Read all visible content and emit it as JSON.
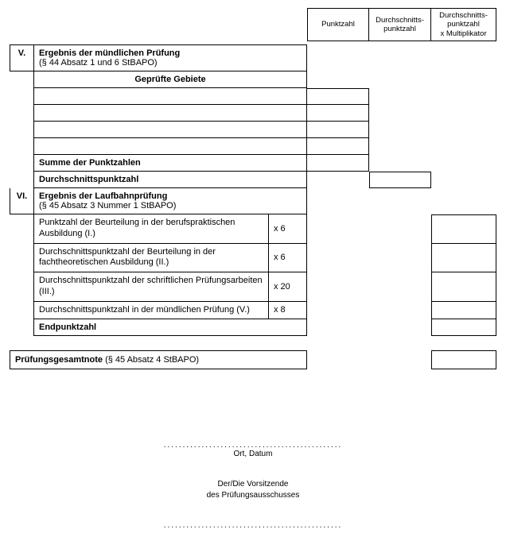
{
  "header": {
    "col1": "Punktzahl",
    "col2": "Durchschnitts-\npunktzahl",
    "col3": "Durchschnitts-\npunktzahl\nx Multiplikator"
  },
  "section_v": {
    "roman": "V.",
    "title": "Ergebnis der mündlichen Prüfung",
    "subtitle": "(§ 44 Absatz 1 und 6 StBAPO)",
    "areas_header": "Geprüfte Gebiete",
    "sum_label": "Summe der Punktzahlen",
    "dsp_label": "Durchschnittspunktzahl"
  },
  "section_vi": {
    "roman": "VI.",
    "title": "Ergebnis der Laufbahnprüfung",
    "subtitle": "(§ 45 Absatz 3 Nummer 1 StBAPO)",
    "rows": [
      {
        "label": "Punktzahl der Beurteilung in der berufspraktischen Ausbildung (I.)",
        "mult": "x 6"
      },
      {
        "label": "Durchschnittspunktzahl der Beurteilung in der fachtheoretischen Ausbildung (II.)",
        "mult": "x 6"
      },
      {
        "label": "Durchschnittspunktzahl der schriftlichen Prüfungsarbeiten (III.)",
        "mult": "x 20"
      },
      {
        "label": "Durchschnittspunktzahl in der mündlichen Prüfung (V.)",
        "mult": "x 8"
      }
    ],
    "end_label": "Endpunktzahl"
  },
  "final": {
    "bold": "Prüfungsgesamtnote",
    "rest": " (§ 45 Absatz 4 StBAPO)"
  },
  "signatures": {
    "dots": "...............................................",
    "place_date": "Ort, Datum",
    "chair1": "Der/Die Vorsitzende",
    "chair2": "des Prüfungsausschusses"
  }
}
